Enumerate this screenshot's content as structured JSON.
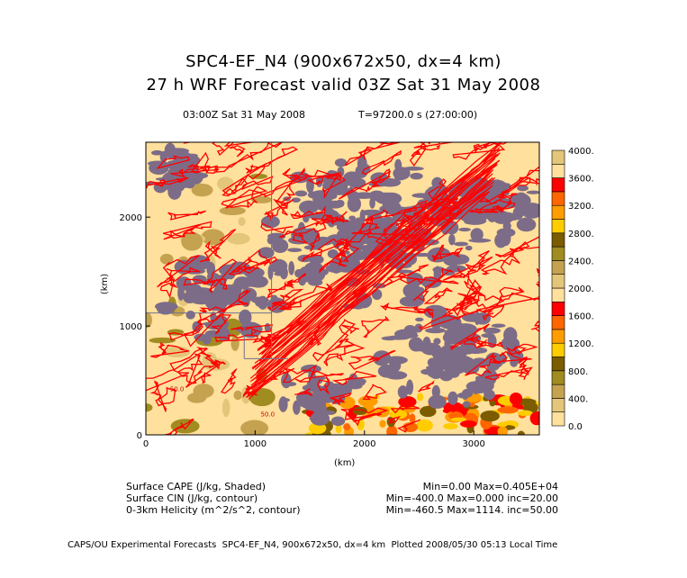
{
  "header": {
    "title1": "SPC4-EF_N4 (900x672x50, dx=4 km)",
    "title2": "27 h WRF Forecast valid 03Z Sat 31 May 2008",
    "valid_time": "03:00Z Sat 31 May 2008",
    "model_time": "T=97200.0 s (27:00:00)"
  },
  "chart_data": {
    "type": "heatmap",
    "title": "27 h WRF Forecast valid 03Z Sat 31 May 2008",
    "xlabel": "(km)",
    "ylabel": "(km)",
    "xlim": [
      0,
      3600
    ],
    "ylim": [
      0,
      2688
    ],
    "x_ticks": [
      "0",
      "1000",
      "2000",
      "3000"
    ],
    "y_ticks": [
      "0",
      "1000",
      "2000"
    ],
    "x_tick_values": [
      0,
      1000,
      2000,
      3000
    ],
    "y_tick_values": [
      0,
      1000,
      2000
    ],
    "colorbar": {
      "levels": [
        0,
        200,
        400,
        600,
        800,
        1000,
        1200,
        1400,
        1600,
        1800,
        2000,
        2200,
        2400,
        2600,
        2800,
        3000,
        3200,
        3400,
        3600,
        3800,
        4000
      ],
      "labels": [
        "0.0",
        "400.",
        "800.",
        "1200.",
        "1600.",
        "2000.",
        "2400.",
        "2800.",
        "3200.",
        "3600.",
        "4000."
      ],
      "label_values": [
        0,
        400,
        800,
        1200,
        1600,
        2000,
        2400,
        2800,
        3200,
        3600,
        4000
      ],
      "colors": [
        "#ffe09c",
        "#e4c67a",
        "#c4a250",
        "#a08c20",
        "#7c5c00",
        "#ffcc00",
        "#ff9c00",
        "#ff6600",
        "#ff0000",
        "#ffe09c",
        "#e4c67a",
        "#c4a250",
        "#a08c20",
        "#7c5c00",
        "#ffcc00",
        "#ff9c00",
        "#ff6600",
        "#ff0000",
        "#ffe09c",
        "#e4c67a"
      ]
    },
    "contour_labels": [
      "-50.0",
      "50.0"
    ],
    "cin_color": "#7c6c88",
    "helicity_color": "#ff0000"
  },
  "legend": [
    {
      "field": "Surface CAPE (J/kg, Shaded)",
      "stats": "Min=0.00 Max=0.405E+04"
    },
    {
      "field": "Surface CIN (J/kg, contour)",
      "stats": "Min=-400.0 Max=0.000 inc=20.00"
    },
    {
      "field": "0-3km Helicity (m^2/s^2, contour)",
      "stats": "Min=-460.5 Max=1114. inc=50.00"
    }
  ],
  "footer": "CAPS/OU Experimental Forecasts  SPC4-EF_N4, 900x672x50, dx=4 km  Plotted 2008/05/30 05:13 Local Time"
}
